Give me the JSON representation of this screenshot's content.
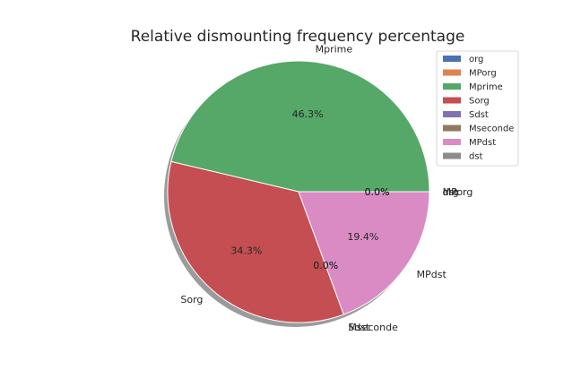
{
  "chart_data": {
    "type": "pie",
    "title": "Relative dismounting frequency percentage",
    "categories": [
      "org",
      "MPorg",
      "Mprime",
      "Sorg",
      "Sdst",
      "Mseconde",
      "MPdst",
      "dst"
    ],
    "values": [
      0.0,
      0.0,
      46.3,
      34.3,
      0.0,
      0.0,
      19.4,
      0.0
    ],
    "value_labels": [
      "0.0%",
      "0.0%",
      "46.3%",
      "34.3%",
      "0.0%",
      "0.0%",
      "19.4%",
      "0.0%"
    ],
    "colors": [
      "#4c72b0",
      "#dd8452",
      "#55a868",
      "#c44e52",
      "#8172b3",
      "#937860",
      "#da8bc3",
      "#8c8c8c"
    ],
    "shadow": true,
    "legend": {
      "placement": "top-right",
      "entries": [
        "org",
        "MPorg",
        "Mprime",
        "Sorg",
        "Sdst",
        "Mseconde",
        "MPdst",
        "dst"
      ]
    }
  }
}
